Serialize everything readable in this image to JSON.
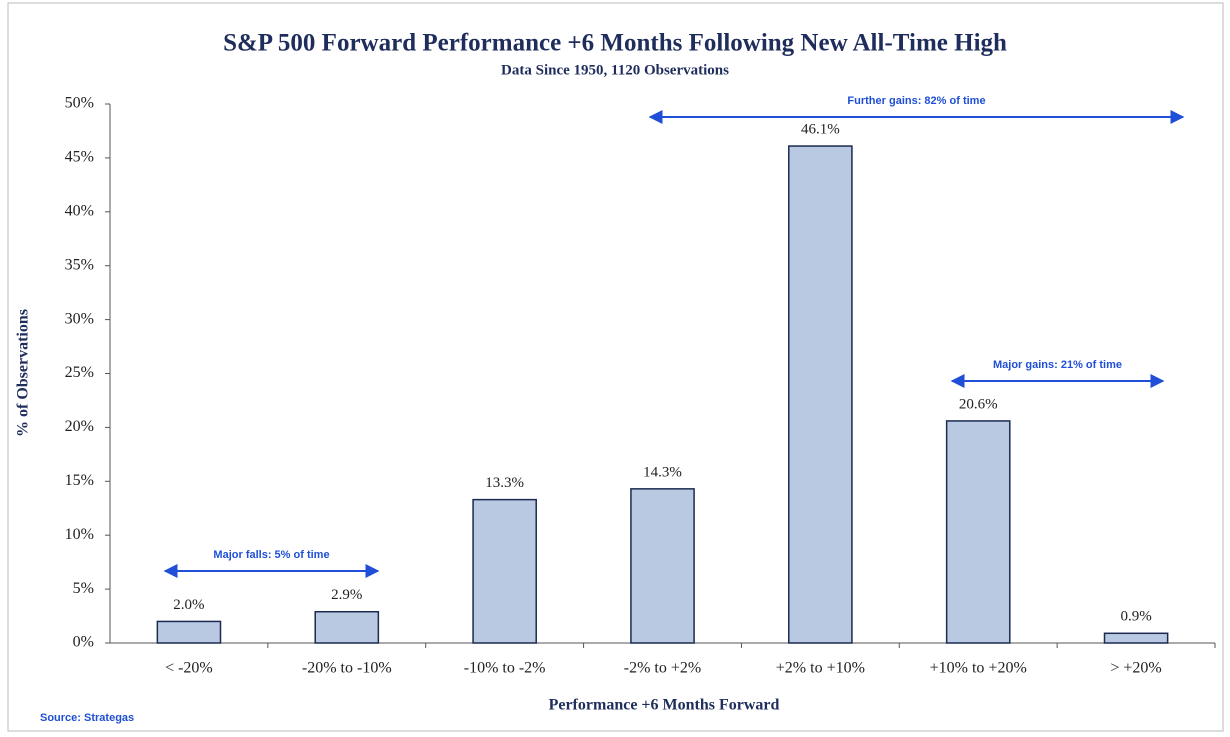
{
  "chart_data": {
    "type": "bar",
    "title": "S&P 500 Forward Performance +6 Months Following New All-Time High",
    "subtitle": "Data Since 1950, 1120 Observations",
    "x_label": "Performance +6 Months Forward",
    "y_label": "% of Observations",
    "source": "Source: Strategas",
    "categories": [
      "< -20%",
      "-20% to -10%",
      "-10% to -2%",
      "-2% to +2%",
      "+2% to +10%",
      "+10% to +20%",
      "> +20%"
    ],
    "values": [
      2.0,
      2.9,
      13.3,
      14.3,
      46.1,
      20.6,
      0.9
    ],
    "value_labels": [
      "2.0%",
      "2.9%",
      "13.3%",
      "14.3%",
      "46.1%",
      "20.6%",
      "0.9%"
    ],
    "color": "#b9c9e2",
    "ylim": [
      0,
      50
    ],
    "yticks": [
      {
        "value": 0,
        "label": "0%"
      },
      {
        "value": 5,
        "label": "5%"
      },
      {
        "value": 10,
        "label": "10%"
      },
      {
        "value": 15,
        "label": "15%"
      },
      {
        "value": 20,
        "label": "20%"
      },
      {
        "value": 25,
        "label": "25%"
      },
      {
        "value": 30,
        "label": "30%"
      },
      {
        "value": 35,
        "label": "35%"
      },
      {
        "value": 40,
        "label": "40%"
      },
      {
        "value": 45,
        "label": "45%"
      },
      {
        "value": 50,
        "label": "50%"
      }
    ],
    "annotations": [
      "Further gains: 82% of time",
      "Major gains: 21% of time",
      "Major falls: 5% of time"
    ]
  }
}
